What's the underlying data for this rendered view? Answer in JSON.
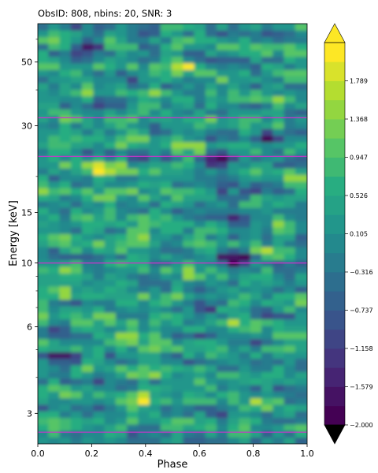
{
  "chart_data": {
    "type": "heatmap",
    "title": "ObsID: 808, nbins: 20, SNR: 3",
    "xlabel": "Phase",
    "ylabel": "Energy [keV]",
    "xlim": [
      0.0,
      1.0
    ],
    "ylim": [
      2.35,
      68
    ],
    "y_scale": "log",
    "x_ticks": [
      "0.0",
      "0.2",
      "0.4",
      "0.6",
      "0.8",
      "1.0"
    ],
    "y_ticks": [
      "3",
      "6",
      "10",
      "15",
      "30",
      "50"
    ],
    "colorbar": {
      "min": -2.0,
      "max": 2.21,
      "extend": "both",
      "levels": 20,
      "ticks": [
        "−2.000",
        "−1.579",
        "−1.158",
        "−0.737",
        "−0.316",
        "0.105",
        "0.526",
        "0.947",
        "1.368",
        "1.789"
      ]
    },
    "colormap": "viridis",
    "reference_lines": {
      "color": "#cc33cc",
      "energies_keV": [
        2.58,
        10.0,
        23.5,
        32.0
      ]
    },
    "hotspots": [
      {
        "phase": 0.39,
        "energy_keV": 3.3,
        "value": 1.8
      },
      {
        "phase": 0.33,
        "energy_keV": 5.6,
        "value": 1.6
      },
      {
        "phase": 0.35,
        "energy_keV": 12.5,
        "value": 1.5
      },
      {
        "phase": 0.25,
        "energy_keV": 21.0,
        "value": 1.2
      },
      {
        "phase": 0.1,
        "energy_keV": 7.8,
        "value": 1.3
      },
      {
        "phase": 0.55,
        "energy_keV": 49.0,
        "value": 1.4
      },
      {
        "phase": 0.33,
        "energy_keV": 17.5,
        "value": 1.2
      },
      {
        "phase": 0.52,
        "energy_keV": 26.0,
        "value": 1.0
      }
    ],
    "coldspots": [
      {
        "phase": 0.73,
        "energy_keV": 14.2,
        "value": -2.0
      },
      {
        "phase": 0.74,
        "energy_keV": 10.4,
        "value": -1.9
      },
      {
        "phase": 0.68,
        "energy_keV": 22.8,
        "value": -1.8
      },
      {
        "phase": 0.2,
        "energy_keV": 56.0,
        "value": -1.8
      },
      {
        "phase": 0.1,
        "energy_keV": 4.7,
        "value": -1.6
      },
      {
        "phase": 0.85,
        "energy_keV": 27.5,
        "value": -1.5
      },
      {
        "phase": 0.7,
        "energy_keV": 17.0,
        "value": -1.4
      },
      {
        "phase": 0.6,
        "energy_keV": 7.2,
        "value": -1.2
      }
    ]
  }
}
